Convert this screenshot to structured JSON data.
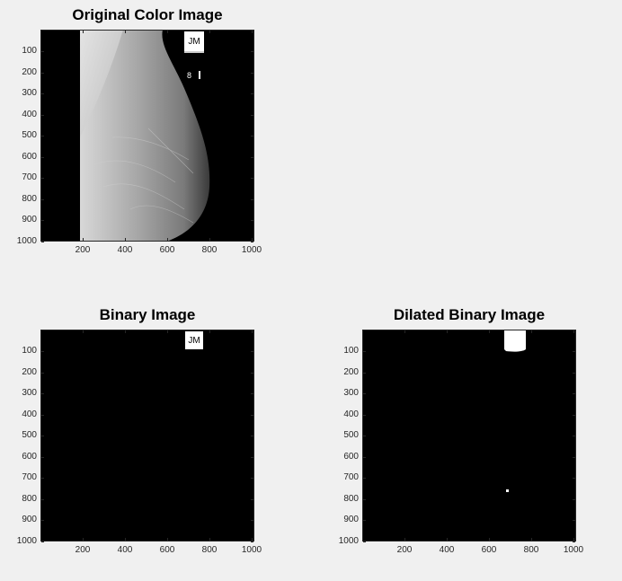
{
  "figure": {
    "axes": [
      {
        "key": "original",
        "title": "Original Color Image",
        "label_text": "JM",
        "marker_text": "8",
        "yticks": [
          "100",
          "200",
          "300",
          "400",
          "500",
          "600",
          "700",
          "800",
          "900",
          "1000"
        ],
        "xticks": [
          "200",
          "400",
          "600",
          "800",
          "1000"
        ]
      },
      {
        "key": "binary",
        "title": "Binary Image",
        "label_text": "JM",
        "yticks": [
          "100",
          "200",
          "300",
          "400",
          "500",
          "600",
          "700",
          "800",
          "900",
          "1000"
        ],
        "xticks": [
          "200",
          "400",
          "600",
          "800",
          "1000"
        ]
      },
      {
        "key": "dilated",
        "title": "Dilated Binary Image",
        "yticks": [
          "100",
          "200",
          "300",
          "400",
          "500",
          "600",
          "700",
          "800",
          "900",
          "1000"
        ],
        "xticks": [
          "200",
          "400",
          "600",
          "800",
          "1000"
        ]
      }
    ]
  },
  "colors": {
    "figure_background": "#f0f0f0",
    "image_background": "#000000",
    "axis_color": "#262626"
  }
}
